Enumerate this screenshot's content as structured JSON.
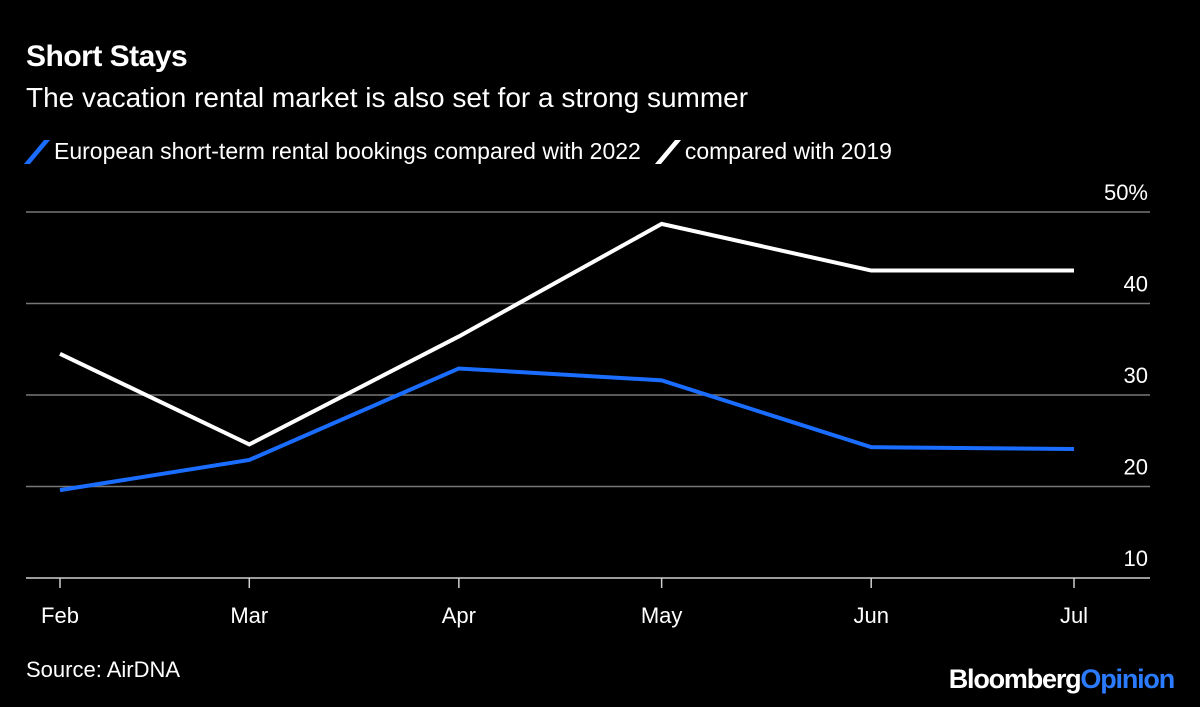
{
  "header": {
    "title": "Short Stays",
    "subtitle": "The vacation rental market is also set for a strong summer"
  },
  "footer": {
    "source": "Source: AirDNA",
    "logo_text": "BloombergOpinion"
  },
  "colors": {
    "background": "#000000",
    "series_2022": "#1a6dff",
    "series_2019": "#ffffff",
    "grid": "#7a7a7a"
  },
  "chart_data": {
    "type": "line",
    "title": "Short Stays",
    "subtitle": "The vacation rental market is also set for a strong summer",
    "x": [
      "Feb",
      "Mar",
      "Apr",
      "May",
      "Jun",
      "Jul"
    ],
    "x_tick_labels": [
      "Feb",
      "Mar",
      "Apr",
      "May",
      "Jun",
      "Jul"
    ],
    "y_tick_labels": [
      "50%",
      "40",
      "30",
      "20",
      "10"
    ],
    "y_ticks": [
      50,
      40,
      30,
      20,
      10
    ],
    "ylim": [
      10,
      50
    ],
    "y_axis_side": "right",
    "grid": true,
    "legend_placement": "top-left",
    "series": [
      {
        "name": "European short-term rental bookings compared with 2022",
        "color": "#1a6dff",
        "values": [
          19.6,
          22.9,
          32.9,
          31.6,
          24.3,
          24.1
        ]
      },
      {
        "name": "compared with 2019",
        "color": "#ffffff",
        "values": [
          34.5,
          24.6,
          36.4,
          48.7,
          43.6,
          43.6
        ]
      }
    ]
  }
}
